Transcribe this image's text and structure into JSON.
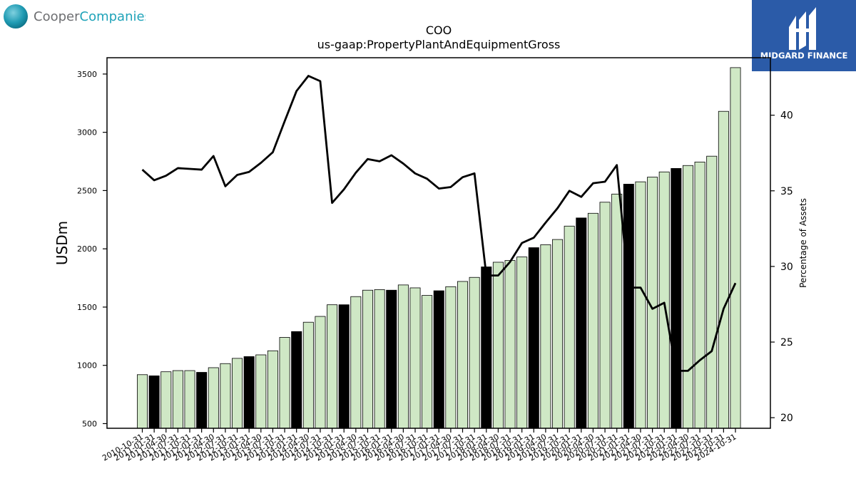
{
  "branding": {
    "left_logo_text_part1": "Cooper",
    "left_logo_text_part2": "Companies",
    "right_logo_text": "MIDGARD FINANCE"
  },
  "chart_data": {
    "type": "bar",
    "title": "COO",
    "subtitle": "us-gaap:PropertyPlantAndEquipmentGross",
    "ylabel": "USDm",
    "ylabel_right": "Percentage of Assets",
    "ylim": [
      460,
      3640
    ],
    "ylim_right": [
      19.3,
      43.8
    ],
    "yticks": [
      500,
      1000,
      1500,
      2000,
      2500,
      3000,
      3500
    ],
    "yticks_right": [
      20,
      25,
      30,
      35,
      40
    ],
    "colors": {
      "bar_light": "#cfe8c5",
      "bar_dark": "#000000",
      "line": "#000000"
    },
    "categories": [
      "2010-10-31",
      "2011-01-31",
      "2011-04-30",
      "2011-07-31",
      "2011-10-31",
      "2012-01-31",
      "2012-04-30",
      "2012-07-31",
      "2012-10-31",
      "2013-01-31",
      "2013-04-30",
      "2013-07-31",
      "2013-10-31",
      "2014-01-31",
      "2014-04-30",
      "2014-07-31",
      "2014-10-31",
      "2015-01-31",
      "2015-04-30",
      "2015-07-31",
      "2015-10-31",
      "2016-01-31",
      "2016-04-30",
      "2016-07-31",
      "2016-10-31",
      "2017-01-31",
      "2017-04-30",
      "2017-07-31",
      "2017-10-31",
      "2018-01-31",
      "2018-04-30",
      "2018-07-31",
      "2018-10-31",
      "2019-01-31",
      "2019-04-30",
      "2019-07-31",
      "2019-10-31",
      "2020-01-31",
      "2020-04-30",
      "2020-07-31",
      "2020-10-31",
      "2021-01-31",
      "2021-04-30",
      "2021-07-31",
      "2021-10-31",
      "2022-01-31",
      "2022-04-30",
      "2022-07-31",
      "2022-10-31",
      "2023-10-31",
      "2024-10-31"
    ],
    "series": [
      {
        "values": [
          920,
          910,
          945,
          955,
          955,
          940,
          980,
          1015,
          1060,
          1075,
          1090,
          1125,
          1240,
          1290,
          1370,
          1420,
          1520,
          1520,
          1590,
          1645,
          1650,
          1645,
          1690,
          1665,
          1600,
          1640,
          1675,
          1720,
          1755,
          1845,
          1885,
          1900,
          1930,
          2010,
          2035,
          2080,
          2195,
          2265,
          2305,
          2400,
          2470,
          2555,
          2575,
          2615,
          2660,
          2690,
          2715,
          2745,
          2795,
          3180,
          3555
        ],
        "dark": [
          false,
          true,
          false,
          false,
          false,
          true,
          false,
          false,
          false,
          true,
          false,
          false,
          false,
          true,
          false,
          false,
          false,
          true,
          false,
          false,
          false,
          true,
          false,
          false,
          false,
          true,
          false,
          false,
          false,
          true,
          false,
          false,
          false,
          true,
          false,
          false,
          false,
          true,
          false,
          false,
          false,
          true,
          false,
          false,
          false,
          true,
          false,
          false,
          false,
          false,
          false
        ]
      },
      {
        "axis": "right",
        "type": "line",
        "values": [
          36.4,
          35.7,
          36.0,
          36.5,
          36.45,
          36.4,
          37.3,
          35.3,
          36.05,
          36.25,
          36.85,
          37.55,
          39.6,
          41.6,
          42.6,
          42.25,
          34.2,
          35.1,
          36.2,
          37.1,
          36.95,
          37.35,
          36.8,
          36.15,
          35.8,
          35.15,
          35.25,
          35.9,
          36.15,
          29.4,
          29.4,
          30.3,
          31.55,
          31.9,
          32.9,
          33.85,
          35.0,
          34.6,
          35.5,
          35.6,
          36.7,
          28.6,
          28.6,
          27.2,
          27.6,
          23.1,
          23.1,
          23.8,
          24.4,
          27.2,
          28.9
        ]
      }
    ]
  }
}
